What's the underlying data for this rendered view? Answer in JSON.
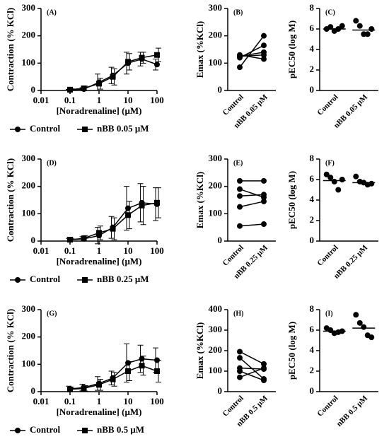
{
  "chart_data": [
    {
      "type": "line",
      "title": "(A)",
      "ylabel": "Contraction (% KCl)",
      "xlabel": "[Noradrenaline] (μM)",
      "xscale": "log",
      "xlim": [
        0.01,
        100
      ],
      "xticks": [
        0.01,
        0.1,
        1,
        10,
        100
      ],
      "ylim": [
        0,
        300
      ],
      "yticks": [
        0,
        100,
        200,
        300
      ],
      "x": [
        0.1,
        0.3,
        1,
        3,
        10,
        30,
        100
      ],
      "series": [
        {
          "name": "Control",
          "marker": "circle",
          "color": "#000",
          "values": [
            2,
            5,
            30,
            55,
            100,
            115,
            95
          ],
          "errors": [
            2,
            5,
            30,
            30,
            40,
            25,
            20
          ]
        },
        {
          "name": "nBB 0.05 μM",
          "marker": "square",
          "color": "#000",
          "values": [
            3,
            8,
            25,
            50,
            105,
            120,
            130
          ],
          "errors": [
            3,
            8,
            20,
            30,
            30,
            20,
            25
          ]
        }
      ]
    },
    {
      "type": "slope",
      "title": "(B)",
      "ylabel": "Emax (%KCl)",
      "categories": [
        "Control",
        "nBB 0.05 μM"
      ],
      "ylim": [
        0,
        300
      ],
      "yticks": [
        0,
        100,
        200,
        300
      ],
      "color": "#000",
      "series": [
        {
          "values": [
            85,
            200
          ]
        },
        {
          "values": [
            120,
            165
          ]
        },
        {
          "values": [
            125,
            140
          ]
        },
        {
          "values": [
            125,
            130
          ]
        },
        {
          "values": [
            130,
            115
          ]
        }
      ]
    },
    {
      "type": "dot",
      "title": "(C)",
      "ylabel": "pEC50 (log M)",
      "categories": [
        "Control",
        "nBB 0.05 μM"
      ],
      "ylim": [
        0,
        8
      ],
      "yticks": [
        0,
        2,
        4,
        6,
        8
      ],
      "color": "#000",
      "values": [
        [
          6.0,
          6.2,
          5.8,
          6.0,
          6.3
        ],
        [
          6.8,
          6.3,
          5.5,
          5.5,
          6.0
        ]
      ],
      "means": [
        6.0,
        5.9
      ]
    },
    {
      "type": "line",
      "title": "(D)",
      "ylabel": "Contraction (% KCl)",
      "xlabel": "[Noradrenaline] (μM)",
      "xscale": "log",
      "xlim": [
        0.01,
        100
      ],
      "xticks": [
        0.01,
        0.1,
        1,
        10,
        100
      ],
      "ylim": [
        0,
        300
      ],
      "yticks": [
        0,
        100,
        200,
        300
      ],
      "x": [
        0.1,
        0.3,
        1,
        3,
        10,
        30,
        100
      ],
      "series": [
        {
          "name": "Control",
          "marker": "circle",
          "color": "#000",
          "values": [
            5,
            8,
            20,
            50,
            120,
            140,
            135
          ],
          "errors": [
            5,
            8,
            30,
            40,
            80,
            70,
            60
          ]
        },
        {
          "name": "nBB 0.25 μM",
          "marker": "square",
          "color": "#000",
          "values": [
            5,
            10,
            30,
            45,
            95,
            130,
            140
          ],
          "errors": [
            5,
            10,
            25,
            40,
            50,
            70,
            55
          ]
        }
      ]
    },
    {
      "type": "slope",
      "title": "(E)",
      "ylabel": "Emax (%KCl)",
      "categories": [
        "Control",
        "nBB 0.25 μM"
      ],
      "ylim": [
        0,
        300
      ],
      "yticks": [
        0,
        100,
        200,
        300
      ],
      "color": "#000",
      "series": [
        {
          "values": [
            220,
            220
          ]
        },
        {
          "values": [
            190,
            160
          ]
        },
        {
          "values": [
            165,
            170
          ]
        },
        {
          "values": [
            125,
            145
          ]
        },
        {
          "values": [
            55,
            62
          ]
        }
      ]
    },
    {
      "type": "dot",
      "title": "(F)",
      "ylabel": "pEC50 (log M)",
      "categories": [
        "Control",
        "nBB 0.25 μM"
      ],
      "ylim": [
        0,
        8
      ],
      "yticks": [
        0,
        2,
        4,
        6,
        8
      ],
      "color": "#000",
      "values": [
        [
          6.5,
          6.2,
          5.8,
          5.0,
          6.0
        ],
        [
          6.3,
          5.8,
          5.7,
          5.5,
          5.6
        ]
      ],
      "means": [
        5.9,
        5.7
      ]
    },
    {
      "type": "line",
      "title": "(G)",
      "ylabel": "Contraction (% KCl)",
      "xlabel": "[Noradrenaline] (μM)",
      "xscale": "log",
      "xlim": [
        0.01,
        100
      ],
      "xticks": [
        0.01,
        0.1,
        1,
        10,
        100
      ],
      "ylim": [
        0,
        300
      ],
      "yticks": [
        0,
        100,
        200,
        300
      ],
      "x": [
        0.1,
        0.3,
        1,
        3,
        10,
        30,
        100
      ],
      "series": [
        {
          "name": "Control",
          "marker": "circle",
          "color": "#000",
          "values": [
            10,
            15,
            30,
            50,
            105,
            120,
            115
          ],
          "errors": [
            10,
            12,
            25,
            25,
            70,
            50,
            45
          ]
        },
        {
          "name": "nBB 0.5 μM",
          "marker": "square",
          "color": "#000",
          "values": [
            8,
            12,
            25,
            45,
            75,
            95,
            75
          ],
          "errors": [
            8,
            10,
            20,
            25,
            35,
            35,
            40
          ]
        }
      ]
    },
    {
      "type": "slope",
      "title": "(H)",
      "ylabel": "Emax (%KCl)",
      "categories": [
        "Control",
        "nBB 0.5 μM"
      ],
      "ylim": [
        0,
        400
      ],
      "yticks": [
        0,
        100,
        200,
        300,
        400
      ],
      "color": "#000",
      "series": [
        {
          "values": [
            195,
            135
          ]
        },
        {
          "values": [
            165,
            62
          ]
        },
        {
          "values": [
            115,
            110
          ]
        },
        {
          "values": [
            100,
            55
          ]
        },
        {
          "values": [
            70,
            115
          ]
        }
      ]
    },
    {
      "type": "dot",
      "title": "(I)",
      "ylabel": "pEC50 (log M)",
      "categories": [
        "Control",
        "nBB 0.5 μM"
      ],
      "ylim": [
        0,
        8
      ],
      "yticks": [
        0,
        2,
        4,
        6,
        8
      ],
      "color": "#000",
      "values": [
        [
          6.2,
          6.0,
          5.7,
          5.8,
          5.9
        ],
        [
          7.5,
          6.7,
          6.3,
          5.5,
          5.3
        ]
      ],
      "means": [
        5.9,
        6.2
      ]
    }
  ]
}
